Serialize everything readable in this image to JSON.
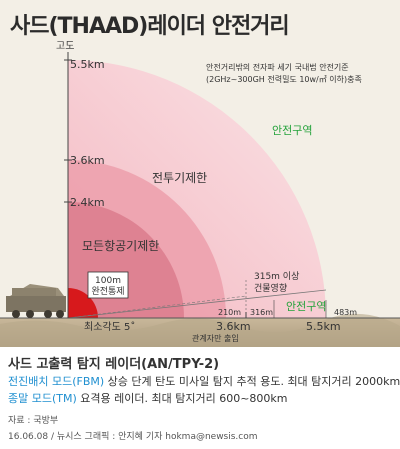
{
  "title": "사드(THAAD)레이더 안전거리",
  "axis": {
    "y_label": "고도",
    "h_high": "5.5km",
    "h_mid": "3.6km",
    "h_low": "2.4km"
  },
  "notes": {
    "standard_line1": "안전거리밖의 전자파 세기 국내법 안전기준",
    "standard_line2": "(2GHz~300GH 전력밀도 10w/㎡ 이하)충족"
  },
  "zones": {
    "safe_upper": "안전구역",
    "fighter": "전투기제한",
    "all_aircraft": "모든항공기제한",
    "control_line1": "100m",
    "control_line2": "완전통제",
    "building_line1": "315m 이상",
    "building_line2": "건물영향",
    "safe_lower": "안전구역"
  },
  "ground": {
    "min_angle": "최소각도 5˚",
    "d210": "210m",
    "d316": "316m",
    "d483": "483m",
    "d36": "3.6km",
    "d36_sub": "관계자만 출입",
    "d55": "5.5km"
  },
  "info": {
    "header": "사드 고출력 탐지 레이더(AN/TPY-2)",
    "fbm_label": "전진배치 모드(FBM)",
    "fbm_desc": " 상승 단계 탄도 미사일 탐지 추적 용도. 최대 탐지거리 2000km",
    "tm_label": "종말 모드(TM)",
    "tm_desc": " 요격용 레이더. 최대 탐지거리 600~800km",
    "source": "자료 : 국방부",
    "credit": "16.06.08 / 뉴시스 그래픽 : 안지혜 기자 hokma@newsis.com"
  },
  "colors": {
    "outer_fan": "#f5c9cf",
    "mid_fan": "#e99aa8",
    "inner_fan": "#d9788a",
    "control": "#d7191c",
    "safe_text": "#23a23a",
    "accent_blue": "#1f8fd0"
  }
}
